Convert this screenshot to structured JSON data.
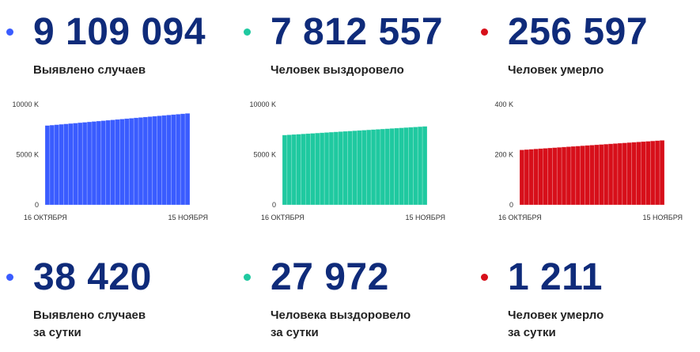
{
  "colors": {
    "blue": "#3a5cff",
    "green": "#1fc9a0",
    "red": "#d70f1a",
    "number": "#0f2b7a"
  },
  "totals": [
    {
      "value": "9 109 094",
      "label": "Выявлено случаев",
      "color": "#3a5cff"
    },
    {
      "value": "7 812 557",
      "label": "Человек выздоровело",
      "color": "#1fc9a0"
    },
    {
      "value": "256 597",
      "label": "Человек умерло",
      "color": "#d70f1a"
    }
  ],
  "daily": [
    {
      "value": "38 420",
      "label": "Выявлено случаев",
      "label2": "за сутки",
      "color": "#3a5cff"
    },
    {
      "value": "27 972",
      "label": "Человека выздоровело",
      "label2": "за сутки",
      "color": "#1fc9a0"
    },
    {
      "value": "1 211",
      "label": "Человек умерло",
      "label2": "за сутки",
      "color": "#d70f1a"
    }
  ],
  "chart_data": [
    {
      "type": "bar",
      "title": "",
      "x_start_label": "16 ОКТЯБРЯ",
      "x_end_label": "15 НОЯБРЯ",
      "y_ticks": [
        "10000 K",
        "5000 K",
        "0"
      ],
      "y_tick_values": [
        10000,
        5000,
        0
      ],
      "ylim": [
        0,
        10000
      ],
      "unit": "K",
      "bars": 31,
      "start_value": 7900,
      "end_value": 9109,
      "color": "#3a5cff"
    },
    {
      "type": "bar",
      "title": "",
      "x_start_label": "16 ОКТЯБРЯ",
      "x_end_label": "15 НОЯБРЯ",
      "y_ticks": [
        "10000 K",
        "5000 K",
        "0"
      ],
      "y_tick_values": [
        10000,
        5000,
        0
      ],
      "ylim": [
        0,
        10000
      ],
      "unit": "K",
      "bars": 31,
      "start_value": 6950,
      "end_value": 7813,
      "color": "#1fc9a0"
    },
    {
      "type": "bar",
      "title": "",
      "x_start_label": "16 ОКТЯБРЯ",
      "x_end_label": "15 НОЯБРЯ",
      "y_ticks": [
        "400 K",
        "200 K",
        "0"
      ],
      "y_tick_values": [
        400,
        200,
        0
      ],
      "ylim": [
        0,
        400
      ],
      "unit": "K",
      "bars": 31,
      "start_value": 219,
      "end_value": 257,
      "color": "#d70f1a"
    }
  ]
}
